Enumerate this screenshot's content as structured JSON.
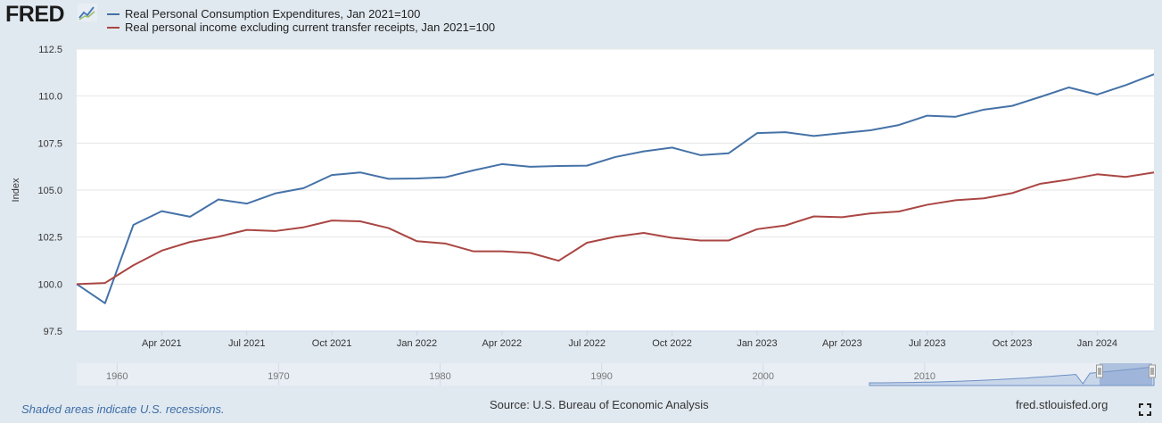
{
  "header": {
    "logo_text": "FRED",
    "logo_icon": "line-chart-icon"
  },
  "footer": {
    "recession_note": "Shaded areas indicate U.S. recessions.",
    "source": "Source: U.S. Bureau of Economic Analysis",
    "site": "fred.stlouisfed.org",
    "fullscreen_icon": "fullscreen-icon"
  },
  "colors": {
    "series1": "#4572a7",
    "series2": "#aa4643",
    "navigator_fill": "#7e9ccc"
  },
  "chart_data": {
    "type": "line",
    "title": "",
    "xlabel": "",
    "ylabel": "Index",
    "ylim": [
      97.5,
      112.5
    ],
    "yticks": [
      "97.5",
      "100.0",
      "102.5",
      "105.0",
      "107.5",
      "110.0",
      "112.5"
    ],
    "x_tick_labels": [
      "Apr 2021",
      "Jul 2021",
      "Oct 2021",
      "Jan 2022",
      "Apr 2022",
      "Jul 2022",
      "Oct 2022",
      "Jan 2023",
      "Apr 2023",
      "Jul 2023",
      "Oct 2023",
      "Jan 2024"
    ],
    "x": [
      "2021-01",
      "2021-02",
      "2021-03",
      "2021-04",
      "2021-05",
      "2021-06",
      "2021-07",
      "2021-08",
      "2021-09",
      "2021-10",
      "2021-11",
      "2021-12",
      "2022-01",
      "2022-02",
      "2022-03",
      "2022-04",
      "2022-05",
      "2022-06",
      "2022-07",
      "2022-08",
      "2022-09",
      "2022-10",
      "2022-11",
      "2022-12",
      "2023-01",
      "2023-02",
      "2023-03",
      "2023-04",
      "2023-05",
      "2023-06",
      "2023-07",
      "2023-08",
      "2023-09",
      "2023-10",
      "2023-11",
      "2023-12",
      "2024-01",
      "2024-02",
      "2024-03"
    ],
    "grid": true,
    "legend_position": "top-left",
    "series": [
      {
        "name": "Real Personal Consumption Expenditures, Jan 2021=100",
        "values": [
          100.0,
          98.98,
          103.15,
          103.88,
          103.58,
          104.5,
          104.28,
          104.82,
          105.1,
          105.8,
          105.94,
          105.6,
          105.62,
          105.68,
          106.05,
          106.38,
          106.24,
          106.28,
          106.3,
          106.76,
          107.06,
          107.26,
          106.86,
          106.96,
          108.03,
          108.08,
          107.88,
          108.03,
          108.18,
          108.46,
          108.96,
          108.9,
          109.28,
          109.48,
          109.96,
          110.46,
          110.08,
          110.58,
          111.16
        ]
      },
      {
        "name": "Real personal income excluding current transfer receipts, Jan 2021=100",
        "values": [
          100.0,
          100.06,
          101.0,
          101.78,
          102.24,
          102.52,
          102.88,
          102.82,
          103.02,
          103.38,
          103.34,
          102.98,
          102.28,
          102.16,
          101.74,
          101.74,
          101.66,
          101.24,
          102.2,
          102.52,
          102.72,
          102.46,
          102.32,
          102.32,
          102.92,
          103.12,
          103.6,
          103.56,
          103.76,
          103.86,
          104.22,
          104.46,
          104.56,
          104.84,
          105.34,
          105.56,
          105.84,
          105.7,
          105.94
        ]
      }
    ],
    "navigator": {
      "tick_labels": [
        "1960",
        "1970",
        "1980",
        "1990",
        "2000",
        "2010"
      ]
    }
  }
}
